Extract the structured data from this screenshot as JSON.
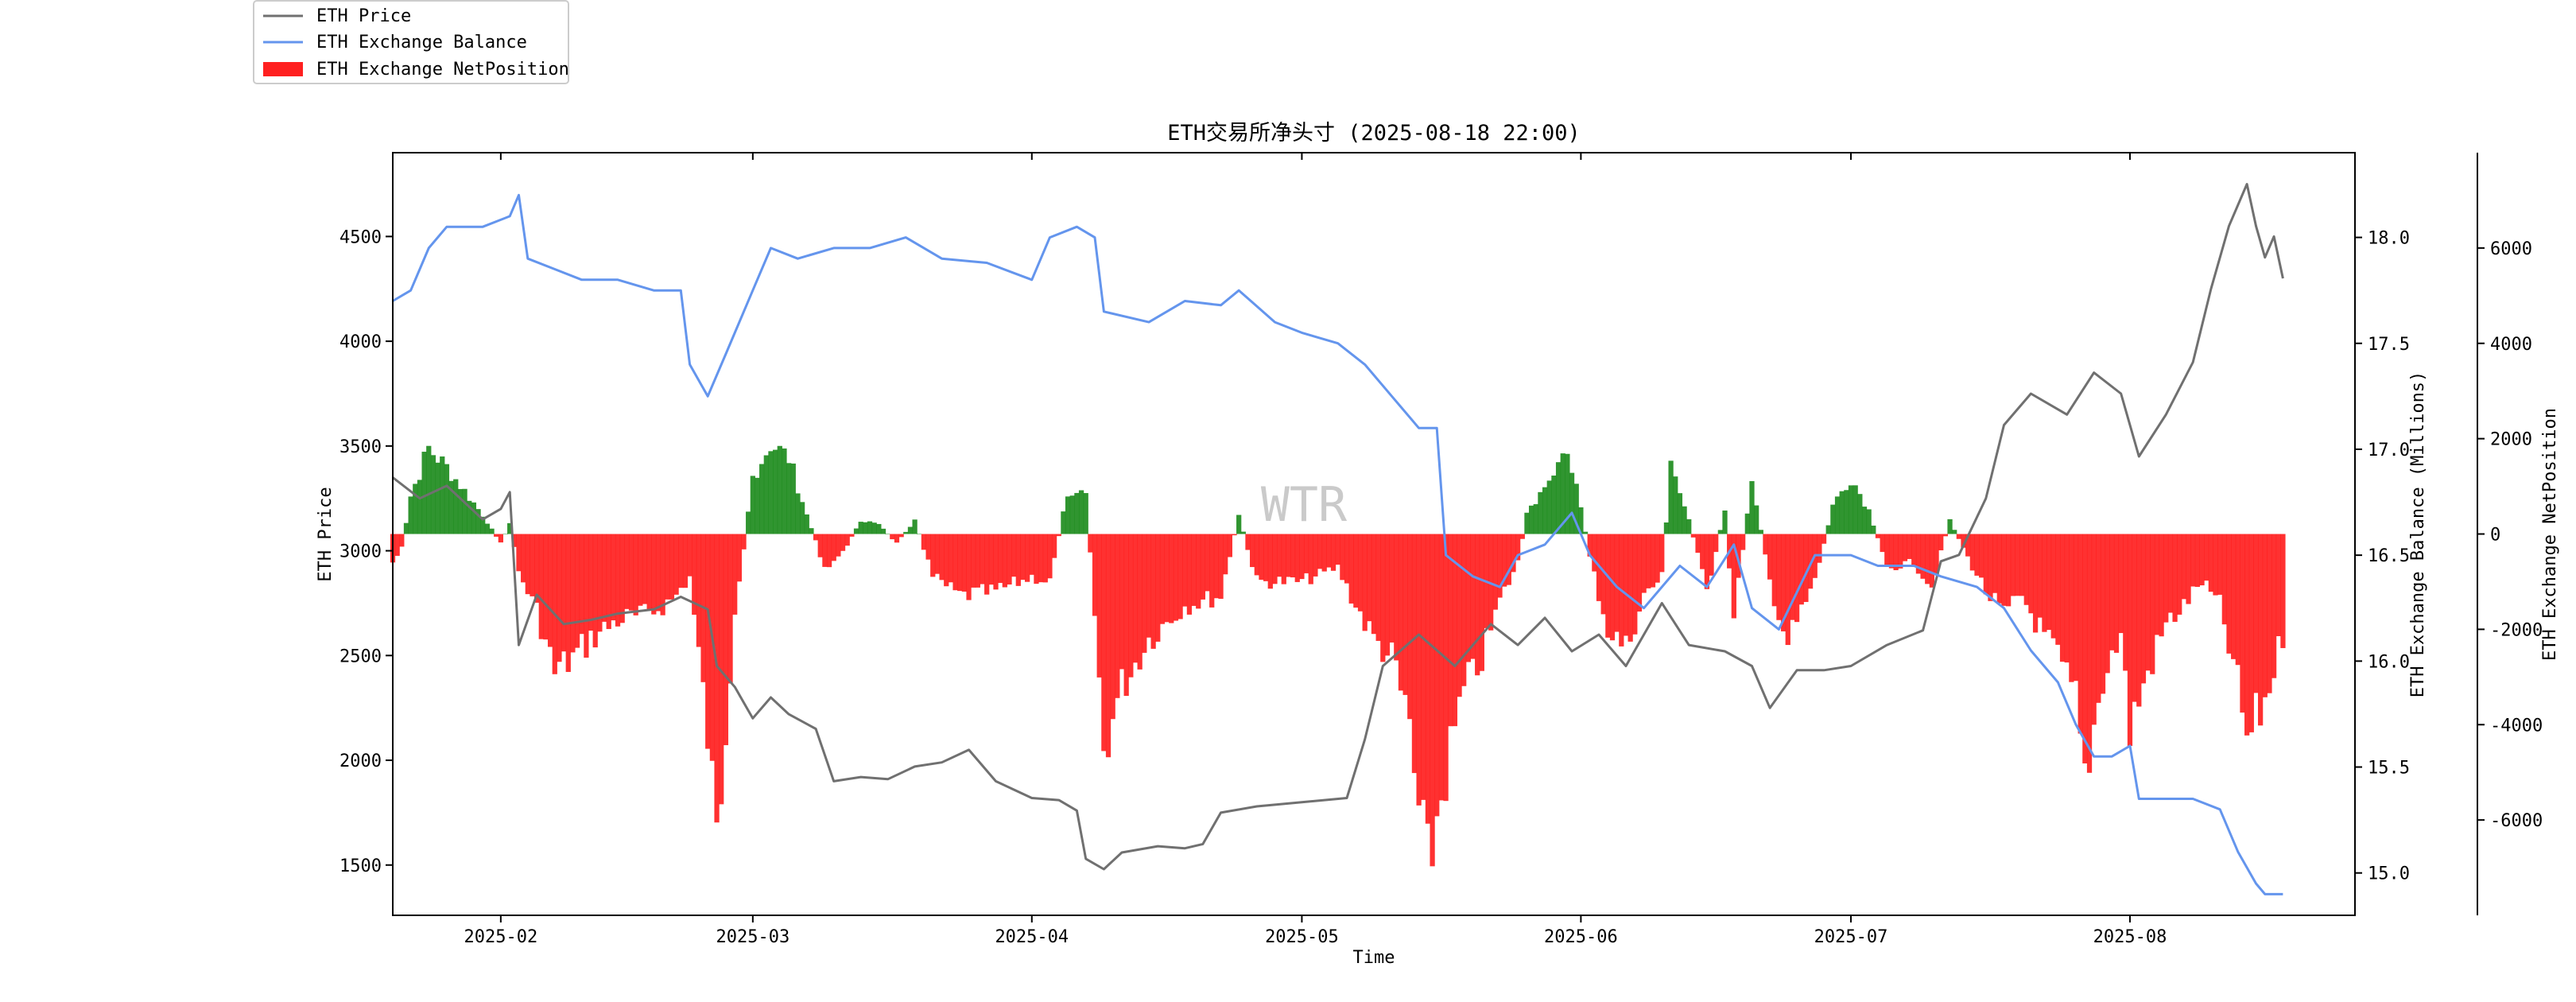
{
  "chart_data": {
    "type": "line",
    "title": "ETH交易所净头寸 (2025-08-18 22:00)",
    "xlabel": "Time",
    "watermark": "WTR",
    "x_ticks": [
      "2025-02",
      "2025-03",
      "2025-04",
      "2025-05",
      "2025-06",
      "2025-07",
      "2025-08"
    ],
    "x_range": [
      "2025-01-20",
      "2025-08-26"
    ],
    "legend_position": "top-left",
    "axes": {
      "price": {
        "label": "ETH Price",
        "ylim": [
          1260,
          4900
        ],
        "ticks": [
          1500,
          2000,
          2500,
          3000,
          3500,
          4000,
          4500
        ]
      },
      "balance": {
        "label": "ETH Exchange Balance (Millions)",
        "ylim": [
          14.8,
          18.4
        ],
        "ticks": [
          "15.0",
          "15.5",
          "16.0",
          "16.5",
          "17.0",
          "17.5",
          "18.0"
        ]
      },
      "netpos": {
        "label": "ETH Exchange NetPosition",
        "ylim": [
          -8000,
          8000
        ],
        "ticks": [
          -6000,
          -4000,
          -2000,
          0,
          2000,
          4000,
          6000
        ]
      }
    },
    "series": [
      {
        "name": "ETH Price",
        "axis": "price",
        "color": "#707070",
        "points": [
          [
            "2025-01-20",
            3350
          ],
          [
            "2025-01-23",
            3250
          ],
          [
            "2025-01-26",
            3310
          ],
          [
            "2025-01-30",
            3150
          ],
          [
            "2025-02-01",
            3200
          ],
          [
            "2025-02-02",
            3280
          ],
          [
            "2025-02-03",
            2550
          ],
          [
            "2025-02-05",
            2790
          ],
          [
            "2025-02-08",
            2650
          ],
          [
            "2025-02-11",
            2670
          ],
          [
            "2025-02-14",
            2700
          ],
          [
            "2025-02-18",
            2720
          ],
          [
            "2025-02-21",
            2780
          ],
          [
            "2025-02-24",
            2720
          ],
          [
            "2025-02-25",
            2450
          ],
          [
            "2025-02-27",
            2350
          ],
          [
            "2025-03-01",
            2200
          ],
          [
            "2025-03-03",
            2300
          ],
          [
            "2025-03-05",
            2220
          ],
          [
            "2025-03-08",
            2150
          ],
          [
            "2025-03-10",
            1900
          ],
          [
            "2025-03-13",
            1920
          ],
          [
            "2025-03-16",
            1910
          ],
          [
            "2025-03-19",
            1970
          ],
          [
            "2025-03-22",
            1990
          ],
          [
            "2025-03-25",
            2050
          ],
          [
            "2025-03-28",
            1900
          ],
          [
            "2025-04-01",
            1820
          ],
          [
            "2025-04-04",
            1810
          ],
          [
            "2025-04-06",
            1760
          ],
          [
            "2025-04-07",
            1530
          ],
          [
            "2025-04-09",
            1480
          ],
          [
            "2025-04-11",
            1560
          ],
          [
            "2025-04-15",
            1590
          ],
          [
            "2025-04-18",
            1580
          ],
          [
            "2025-04-20",
            1600
          ],
          [
            "2025-04-22",
            1750
          ],
          [
            "2025-04-26",
            1780
          ],
          [
            "2025-05-01",
            1800
          ],
          [
            "2025-05-06",
            1820
          ],
          [
            "2025-05-08",
            2100
          ],
          [
            "2025-05-10",
            2450
          ],
          [
            "2025-05-14",
            2600
          ],
          [
            "2025-05-18",
            2450
          ],
          [
            "2025-05-22",
            2650
          ],
          [
            "2025-05-25",
            2550
          ],
          [
            "2025-05-28",
            2680
          ],
          [
            "2025-05-31",
            2520
          ],
          [
            "2025-06-03",
            2600
          ],
          [
            "2025-06-06",
            2450
          ],
          [
            "2025-06-10",
            2750
          ],
          [
            "2025-06-13",
            2550
          ],
          [
            "2025-06-17",
            2520
          ],
          [
            "2025-06-20",
            2450
          ],
          [
            "2025-06-22",
            2250
          ],
          [
            "2025-06-25",
            2430
          ],
          [
            "2025-06-28",
            2430
          ],
          [
            "2025-07-01",
            2450
          ],
          [
            "2025-07-05",
            2550
          ],
          [
            "2025-07-09",
            2620
          ],
          [
            "2025-07-11",
            2950
          ],
          [
            "2025-07-13",
            2980
          ],
          [
            "2025-07-16",
            3250
          ],
          [
            "2025-07-18",
            3600
          ],
          [
            "2025-07-21",
            3750
          ],
          [
            "2025-07-25",
            3650
          ],
          [
            "2025-07-28",
            3850
          ],
          [
            "2025-07-31",
            3750
          ],
          [
            "2025-08-02",
            3450
          ],
          [
            "2025-08-05",
            3650
          ],
          [
            "2025-08-08",
            3900
          ],
          [
            "2025-08-10",
            4250
          ],
          [
            "2025-08-12",
            4550
          ],
          [
            "2025-08-14",
            4750
          ],
          [
            "2025-08-15",
            4550
          ],
          [
            "2025-08-16",
            4400
          ],
          [
            "2025-08-17",
            4500
          ],
          [
            "2025-08-18",
            4300
          ]
        ]
      },
      {
        "name": "ETH Exchange Balance",
        "axis": "balance",
        "color": "#6495ed",
        "points": [
          [
            "2025-01-20",
            17.7
          ],
          [
            "2025-01-22",
            17.75
          ],
          [
            "2025-01-24",
            17.95
          ],
          [
            "2025-01-26",
            18.05
          ],
          [
            "2025-01-30",
            18.05
          ],
          [
            "2025-02-02",
            18.1
          ],
          [
            "2025-02-03",
            18.2
          ],
          [
            "2025-02-04",
            17.9
          ],
          [
            "2025-02-07",
            17.85
          ],
          [
            "2025-02-10",
            17.8
          ],
          [
            "2025-02-14",
            17.8
          ],
          [
            "2025-02-18",
            17.75
          ],
          [
            "2025-02-21",
            17.75
          ],
          [
            "2025-02-22",
            17.4
          ],
          [
            "2025-02-24",
            17.25
          ],
          [
            "2025-02-26",
            17.45
          ],
          [
            "2025-03-01",
            17.75
          ],
          [
            "2025-03-03",
            17.95
          ],
          [
            "2025-03-06",
            17.9
          ],
          [
            "2025-03-10",
            17.95
          ],
          [
            "2025-03-14",
            17.95
          ],
          [
            "2025-03-18",
            18.0
          ],
          [
            "2025-03-22",
            17.9
          ],
          [
            "2025-03-27",
            17.88
          ],
          [
            "2025-04-01",
            17.8
          ],
          [
            "2025-04-03",
            18.0
          ],
          [
            "2025-04-06",
            18.05
          ],
          [
            "2025-04-08",
            18.0
          ],
          [
            "2025-04-09",
            17.65
          ],
          [
            "2025-04-14",
            17.6
          ],
          [
            "2025-04-18",
            17.7
          ],
          [
            "2025-04-22",
            17.68
          ],
          [
            "2025-04-24",
            17.75
          ],
          [
            "2025-04-28",
            17.6
          ],
          [
            "2025-05-01",
            17.55
          ],
          [
            "2025-05-05",
            17.5
          ],
          [
            "2025-05-08",
            17.4
          ],
          [
            "2025-05-11",
            17.25
          ],
          [
            "2025-05-14",
            17.1
          ],
          [
            "2025-05-16",
            17.1
          ],
          [
            "2025-05-17",
            16.5
          ],
          [
            "2025-05-20",
            16.4
          ],
          [
            "2025-05-23",
            16.35
          ],
          [
            "2025-05-25",
            16.5
          ],
          [
            "2025-05-28",
            16.55
          ],
          [
            "2025-05-31",
            16.7
          ],
          [
            "2025-06-02",
            16.5
          ],
          [
            "2025-06-05",
            16.35
          ],
          [
            "2025-06-08",
            16.25
          ],
          [
            "2025-06-12",
            16.45
          ],
          [
            "2025-06-15",
            16.35
          ],
          [
            "2025-06-18",
            16.55
          ],
          [
            "2025-06-20",
            16.25
          ],
          [
            "2025-06-23",
            16.15
          ],
          [
            "2025-06-27",
            16.5
          ],
          [
            "2025-07-01",
            16.5
          ],
          [
            "2025-07-04",
            16.45
          ],
          [
            "2025-07-08",
            16.45
          ],
          [
            "2025-07-11",
            16.4
          ],
          [
            "2025-07-15",
            16.35
          ],
          [
            "2025-07-18",
            16.25
          ],
          [
            "2025-07-21",
            16.05
          ],
          [
            "2025-07-24",
            15.9
          ],
          [
            "2025-07-26",
            15.7
          ],
          [
            "2025-07-28",
            15.55
          ],
          [
            "2025-07-30",
            15.55
          ],
          [
            "2025-08-01",
            15.6
          ],
          [
            "2025-08-02",
            15.35
          ],
          [
            "2025-08-05",
            15.35
          ],
          [
            "2025-08-08",
            15.35
          ],
          [
            "2025-08-11",
            15.3
          ],
          [
            "2025-08-13",
            15.1
          ],
          [
            "2025-08-15",
            14.95
          ],
          [
            "2025-08-16",
            14.9
          ],
          [
            "2025-08-18",
            14.9
          ]
        ]
      },
      {
        "name": "ETH Exchange NetPosition",
        "axis": "netpos",
        "type": "bar",
        "color_negative": "#ff2020",
        "color_positive": "#1e8c1e",
        "points": [
          [
            "2025-01-20",
            -600
          ],
          [
            "2025-01-21",
            -300
          ],
          [
            "2025-01-22",
            800
          ],
          [
            "2025-01-24",
            1800
          ],
          [
            "2025-01-26",
            1400
          ],
          [
            "2025-01-28",
            900
          ],
          [
            "2025-01-30",
            400
          ],
          [
            "2025-02-01",
            -200
          ],
          [
            "2025-02-02",
            200
          ],
          [
            "2025-02-03",
            -800
          ],
          [
            "2025-02-05",
            -1600
          ],
          [
            "2025-02-07",
            -2900
          ],
          [
            "2025-02-09",
            -2600
          ],
          [
            "2025-02-11",
            -2200
          ],
          [
            "2025-02-14",
            -1800
          ],
          [
            "2025-02-17",
            -1700
          ],
          [
            "2025-02-20",
            -1400
          ],
          [
            "2025-02-22",
            -900
          ],
          [
            "2025-02-24",
            -4200
          ],
          [
            "2025-02-25",
            -6500
          ],
          [
            "2025-02-26",
            -4000
          ],
          [
            "2025-02-27",
            -1500
          ],
          [
            "2025-02-28",
            -300
          ],
          [
            "2025-03-01",
            1200
          ],
          [
            "2025-03-03",
            1900
          ],
          [
            "2025-03-05",
            1600
          ],
          [
            "2025-03-07",
            400
          ],
          [
            "2025-03-09",
            -700
          ],
          [
            "2025-03-11",
            -400
          ],
          [
            "2025-03-13",
            300
          ],
          [
            "2025-03-15",
            200
          ],
          [
            "2025-03-17",
            -200
          ],
          [
            "2025-03-19",
            300
          ],
          [
            "2025-03-21",
            -900
          ],
          [
            "2025-03-24",
            -1300
          ],
          [
            "2025-03-28",
            -1200
          ],
          [
            "2025-04-01",
            -900
          ],
          [
            "2025-04-03",
            -1000
          ],
          [
            "2025-04-05",
            900
          ],
          [
            "2025-04-07",
            1000
          ],
          [
            "2025-04-09",
            -4500
          ],
          [
            "2025-04-11",
            -3200
          ],
          [
            "2025-04-14",
            -2200
          ],
          [
            "2025-04-18",
            -1500
          ],
          [
            "2025-04-22",
            -1300
          ],
          [
            "2025-04-24",
            400
          ],
          [
            "2025-04-26",
            -1000
          ],
          [
            "2025-05-01",
            -1000
          ],
          [
            "2025-05-05",
            -700
          ],
          [
            "2025-05-07",
            -1500
          ],
          [
            "2025-05-09",
            -2200
          ],
          [
            "2025-05-11",
            -2600
          ],
          [
            "2025-05-13",
            -4000
          ],
          [
            "2025-05-14",
            -6000
          ],
          [
            "2025-05-15",
            -7000
          ],
          [
            "2025-05-17",
            -5000
          ],
          [
            "2025-05-19",
            -3300
          ],
          [
            "2025-05-21",
            -2600
          ],
          [
            "2025-05-23",
            -1400
          ],
          [
            "2025-05-25",
            -600
          ],
          [
            "2025-05-26",
            400
          ],
          [
            "2025-05-28",
            900
          ],
          [
            "2025-05-30",
            1900
          ],
          [
            "2025-06-01",
            600
          ],
          [
            "2025-06-02",
            -500
          ],
          [
            "2025-06-04",
            -2000
          ],
          [
            "2025-06-06",
            -2400
          ],
          [
            "2025-06-08",
            -1300
          ],
          [
            "2025-06-10",
            -900
          ],
          [
            "2025-06-11",
            1400
          ],
          [
            "2025-06-13",
            300
          ],
          [
            "2025-06-15",
            -1200
          ],
          [
            "2025-06-17",
            500
          ],
          [
            "2025-06-18",
            -1800
          ],
          [
            "2025-06-20",
            1200
          ],
          [
            "2025-06-22",
            -1000
          ],
          [
            "2025-06-24",
            -2300
          ],
          [
            "2025-06-27",
            -1000
          ],
          [
            "2025-06-29",
            600
          ],
          [
            "2025-07-01",
            1200
          ],
          [
            "2025-07-03",
            500
          ],
          [
            "2025-07-05",
            -700
          ],
          [
            "2025-07-08",
            -600
          ],
          [
            "2025-07-10",
            -1100
          ],
          [
            "2025-07-12",
            300
          ],
          [
            "2025-07-14",
            -500
          ],
          [
            "2025-07-16",
            -1200
          ],
          [
            "2025-07-18",
            -1700
          ],
          [
            "2025-07-20",
            -1300
          ],
          [
            "2025-07-22",
            -2000
          ],
          [
            "2025-07-24",
            -2600
          ],
          [
            "2025-07-26",
            -3500
          ],
          [
            "2025-07-27",
            -5100
          ],
          [
            "2025-07-29",
            -3000
          ],
          [
            "2025-07-31",
            -2100
          ],
          [
            "2025-08-01",
            -4100
          ],
          [
            "2025-08-03",
            -2900
          ],
          [
            "2025-08-05",
            -1900
          ],
          [
            "2025-08-07",
            -1500
          ],
          [
            "2025-08-09",
            -1000
          ],
          [
            "2025-08-11",
            -1500
          ],
          [
            "2025-08-13",
            -3200
          ],
          [
            "2025-08-14",
            -4300
          ],
          [
            "2025-08-16",
            -3500
          ],
          [
            "2025-08-18",
            -2100
          ]
        ]
      }
    ]
  }
}
